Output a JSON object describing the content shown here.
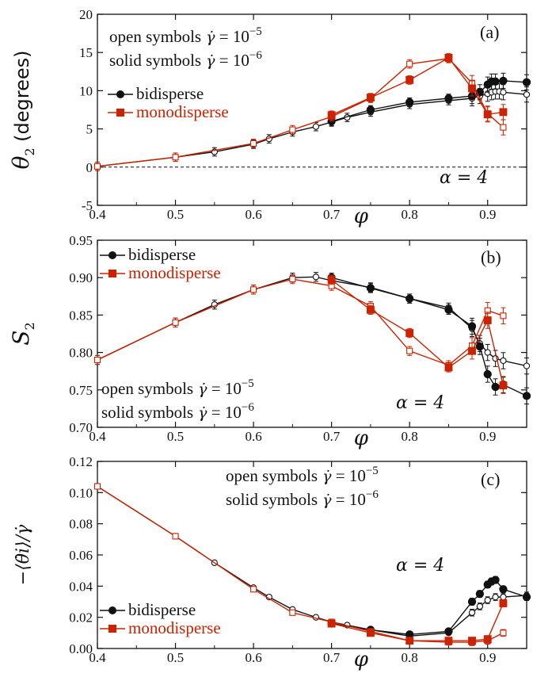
{
  "colors": {
    "bidisperse": "#111111",
    "monodisperse": "#cc2200"
  },
  "chart_data": [
    {
      "type": "line",
      "panel": "(a)",
      "xlabel": "φ",
      "ylabel": "θ2 (degrees)",
      "xlim": [
        0.4,
        0.95
      ],
      "ylim": [
        -5,
        20
      ],
      "xticks": [
        "0.4",
        "0.5",
        "0.6",
        "0.7",
        "0.8",
        "0.9"
      ],
      "yticks": [
        "-5",
        "0",
        "5",
        "10",
        "15",
        "20"
      ],
      "notes": [
        "open symbols γ̇ = 10^-5",
        "solid symbols γ̇ = 10^-6"
      ],
      "alpha_label": "α = 4",
      "legend": [
        "bidisperse",
        "monodisperse"
      ],
      "dashed_line_y": 0,
      "series": [
        {
          "name": "bidisperse",
          "rate": "10^-5",
          "marker": "open-circle",
          "x": [
            0.4,
            0.5,
            0.55,
            0.6,
            0.62,
            0.65,
            0.68,
            0.7,
            0.72,
            0.75,
            0.8,
            0.85,
            0.88,
            0.89,
            0.9,
            0.905,
            0.91,
            0.915,
            0.92,
            0.95
          ],
          "y": [
            0.1,
            1.3,
            2.0,
            3.0,
            3.7,
            4.6,
            5.3,
            5.9,
            6.5,
            7.2,
            8.2,
            8.7,
            9.0,
            9.3,
            9.6,
            9.8,
            9.9,
            9.9,
            9.8,
            9.5
          ]
        },
        {
          "name": "bidisperse",
          "rate": "10^-6",
          "marker": "solid-circle",
          "x": [
            0.7,
            0.75,
            0.8,
            0.85,
            0.88,
            0.89,
            0.9,
            0.905,
            0.91,
            0.92,
            0.95
          ],
          "y": [
            6.0,
            7.5,
            8.5,
            9.0,
            9.3,
            9.8,
            10.8,
            11.2,
            11.2,
            11.3,
            11.1
          ]
        },
        {
          "name": "monodisperse",
          "rate": "10^-5",
          "marker": "open-square",
          "x": [
            0.4,
            0.5,
            0.6,
            0.65,
            0.7,
            0.75,
            0.8,
            0.85,
            0.88,
            0.9,
            0.92
          ],
          "y": [
            0.1,
            1.3,
            3.1,
            4.9,
            6.6,
            9.0,
            13.5,
            14.2,
            11.0,
            7.0,
            5.2
          ]
        },
        {
          "name": "monodisperse",
          "rate": "10^-6",
          "marker": "solid-square",
          "x": [
            0.7,
            0.75,
            0.8,
            0.85,
            0.88,
            0.9,
            0.92
          ],
          "y": [
            6.8,
            9.1,
            11.4,
            14.3,
            10.3,
            6.9,
            7.2
          ]
        }
      ]
    },
    {
      "type": "line",
      "panel": "(b)",
      "xlabel": "φ",
      "ylabel": "S2",
      "xlim": [
        0.4,
        0.95
      ],
      "ylim": [
        0.7,
        0.95
      ],
      "xticks": [
        "0.4",
        "0.5",
        "0.6",
        "0.7",
        "0.8",
        "0.9"
      ],
      "yticks": [
        "0.70",
        "0.75",
        "0.80",
        "0.85",
        "0.90",
        "0.95"
      ],
      "notes": [
        "open symbols γ̇ = 10^-5",
        "solid symbols γ̇ = 10^-6"
      ],
      "alpha_label": "α = 4",
      "legend": [
        "bidisperse",
        "monodisperse"
      ],
      "series": [
        {
          "name": "bidisperse",
          "rate": "10^-5",
          "marker": "open-circle",
          "x": [
            0.4,
            0.5,
            0.55,
            0.6,
            0.65,
            0.68,
            0.7,
            0.75,
            0.8,
            0.85,
            0.88,
            0.89,
            0.9,
            0.91,
            0.92,
            0.95
          ],
          "y": [
            0.79,
            0.84,
            0.864,
            0.884,
            0.9,
            0.901,
            0.896,
            0.887,
            0.872,
            0.86,
            0.832,
            0.812,
            0.8,
            0.792,
            0.789,
            0.782
          ]
        },
        {
          "name": "bidisperse",
          "rate": "10^-6",
          "marker": "solid-circle",
          "x": [
            0.7,
            0.75,
            0.8,
            0.85,
            0.88,
            0.89,
            0.9,
            0.91,
            0.92,
            0.95
          ],
          "y": [
            0.9,
            0.886,
            0.872,
            0.857,
            0.835,
            0.808,
            0.771,
            0.754,
            0.757,
            0.742
          ]
        },
        {
          "name": "monodisperse",
          "rate": "10^-5",
          "marker": "open-square",
          "x": [
            0.4,
            0.5,
            0.6,
            0.65,
            0.7,
            0.75,
            0.8,
            0.85,
            0.88,
            0.9,
            0.92
          ],
          "y": [
            0.79,
            0.84,
            0.884,
            0.898,
            0.889,
            0.862,
            0.802,
            0.783,
            0.809,
            0.856,
            0.849
          ]
        },
        {
          "name": "monodisperse",
          "rate": "10^-6",
          "marker": "solid-square",
          "x": [
            0.7,
            0.75,
            0.8,
            0.85,
            0.88,
            0.9,
            0.92
          ],
          "y": [
            0.897,
            0.857,
            0.826,
            0.78,
            0.802,
            0.843,
            0.756
          ]
        }
      ]
    },
    {
      "type": "line",
      "panel": "(c)",
      "xlabel": "φ",
      "ylabel": "−⟨θ̇i⟩/γ̇",
      "xlim": [
        0.4,
        0.95
      ],
      "ylim": [
        0.0,
        0.12
      ],
      "xticks": [
        "0.4",
        "0.5",
        "0.6",
        "0.7",
        "0.8",
        "0.9"
      ],
      "yticks": [
        "0.00",
        "0.02",
        "0.04",
        "0.06",
        "0.08",
        "0.10",
        "0.12"
      ],
      "notes": [
        "open symbols γ̇ = 10^-5",
        "solid symbols γ̇ = 10^-6"
      ],
      "alpha_label": "α = 4",
      "legend": [
        "bidisperse",
        "monodisperse"
      ],
      "series": [
        {
          "name": "bidisperse",
          "rate": "10^-5",
          "marker": "open-circle",
          "x": [
            0.4,
            0.5,
            0.55,
            0.6,
            0.62,
            0.65,
            0.68,
            0.7,
            0.72,
            0.75,
            0.8,
            0.85,
            0.88,
            0.89,
            0.9,
            0.91,
            0.92,
            0.95
          ],
          "y": [
            0.104,
            0.072,
            0.055,
            0.039,
            0.033,
            0.025,
            0.02,
            0.017,
            0.015,
            0.012,
            0.008,
            0.01,
            0.023,
            0.027,
            0.031,
            0.033,
            0.033,
            0.034
          ]
        },
        {
          "name": "bidisperse",
          "rate": "10^-6",
          "marker": "solid-circle",
          "x": [
            0.7,
            0.75,
            0.8,
            0.85,
            0.88,
            0.89,
            0.9,
            0.905,
            0.91,
            0.92,
            0.95
          ],
          "y": [
            0.016,
            0.012,
            0.009,
            0.011,
            0.03,
            0.035,
            0.041,
            0.043,
            0.044,
            0.038,
            0.033
          ]
        },
        {
          "name": "monodisperse",
          "rate": "10^-5",
          "marker": "open-square",
          "x": [
            0.4,
            0.5,
            0.6,
            0.65,
            0.7,
            0.75,
            0.8,
            0.85,
            0.88,
            0.9,
            0.92
          ],
          "y": [
            0.104,
            0.072,
            0.038,
            0.023,
            0.017,
            0.011,
            0.005,
            0.004,
            0.004,
            0.005,
            0.01
          ]
        },
        {
          "name": "monodisperse",
          "rate": "10^-6",
          "marker": "solid-square",
          "x": [
            0.7,
            0.75,
            0.8,
            0.85,
            0.88,
            0.9,
            0.92
          ],
          "y": [
            0.016,
            0.01,
            0.005,
            0.005,
            0.005,
            0.006,
            0.029
          ]
        }
      ]
    }
  ]
}
